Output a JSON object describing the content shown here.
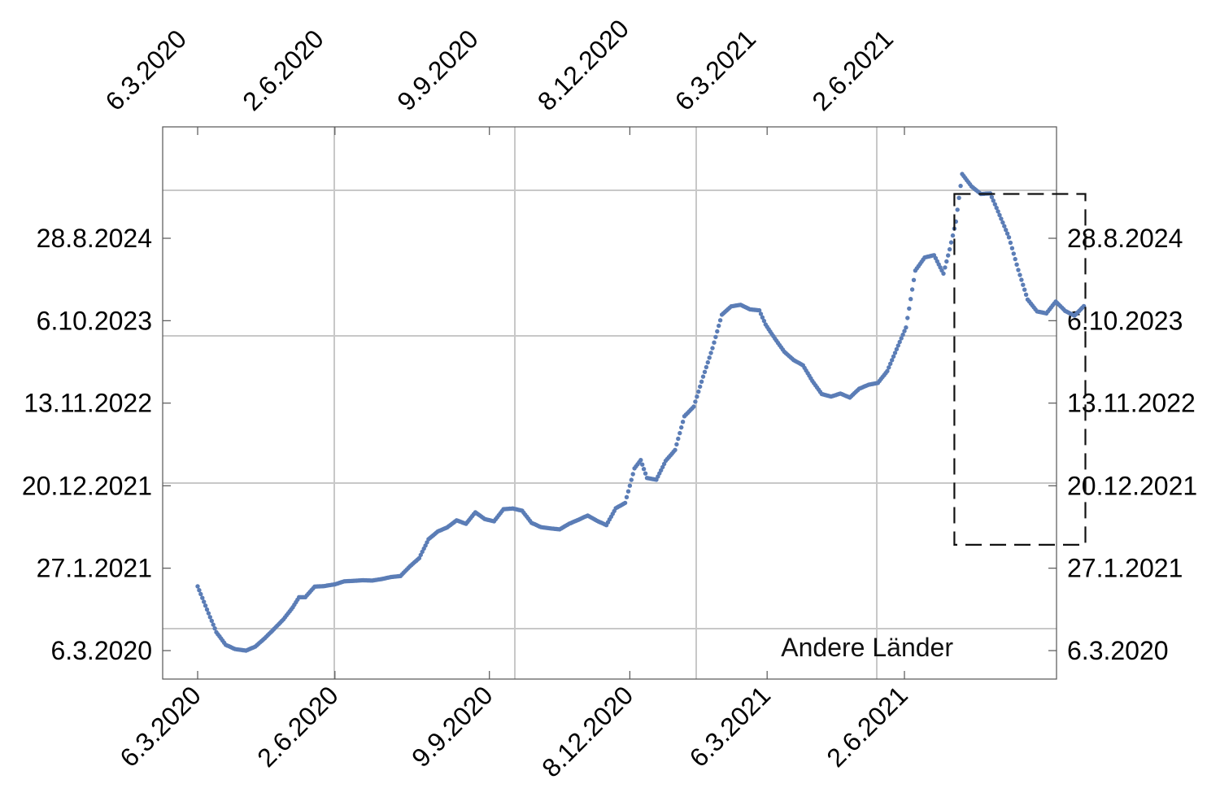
{
  "chart_data": {
    "type": "scatter",
    "title": "",
    "xlabel": "",
    "ylabel": "",
    "grid": true,
    "x_axis": {
      "type": "date",
      "ticks": [
        "6.3.2020",
        "2.6.2020",
        "9.9.2020",
        "8.12.2020",
        "6.3.2021",
        "2.6.2021"
      ],
      "range": [
        "2020-03-06",
        "2021-09-26"
      ],
      "label_rotation_deg": -45,
      "mirrored_top": true
    },
    "y_axis": {
      "type": "date",
      "ticks": [
        "6.3.2020",
        "27.1.2021",
        "20.12.2021",
        "13.11.2022",
        "6.10.2023",
        "28.8.2024"
      ],
      "range": [
        "2019-09-30",
        "2025-07-30"
      ],
      "mirrored_right": true
    },
    "annotation": "Andere Länder",
    "highlight_box": {
      "x_range": [
        "2021-07-04",
        "2021-09-26"
      ],
      "y_range": [
        "2021-04-30",
        "2025-02-20"
      ],
      "style": "dashed"
    },
    "colors": {
      "points": "#5b7db6",
      "grid": "#c8c8c8",
      "frame": "#555555",
      "box": "#111111"
    },
    "series": [
      {
        "x": [
          "2020-03-06",
          "2020-03-12",
          "2020-03-18",
          "2020-03-24",
          "2020-03-30",
          "2020-04-06",
          "2020-04-12",
          "2020-04-18",
          "2020-04-24",
          "2020-04-30",
          "2020-05-06",
          "2020-05-10",
          "2020-05-14",
          "2020-05-20",
          "2020-05-26",
          "2020-06-02",
          "2020-06-08",
          "2020-06-14",
          "2020-06-20",
          "2020-06-26",
          "2020-07-02",
          "2020-07-08",
          "2020-07-14",
          "2020-07-20",
          "2020-07-26",
          "2020-08-01",
          "2020-08-07",
          "2020-08-13",
          "2020-08-19",
          "2020-08-25",
          "2020-08-31",
          "2020-09-06",
          "2020-09-12",
          "2020-09-18",
          "2020-09-24",
          "2020-09-30",
          "2020-10-06",
          "2020-10-12",
          "2020-10-18",
          "2020-10-24",
          "2020-10-30",
          "2020-11-05",
          "2020-11-11",
          "2020-11-17",
          "2020-11-23",
          "2020-11-29",
          "2020-12-05",
          "2020-12-11",
          "2020-12-15",
          "2020-12-19",
          "2020-12-25",
          "2020-12-31",
          "2021-01-06",
          "2021-01-12",
          "2021-01-18",
          "2021-01-24",
          "2021-01-30",
          "2021-02-05",
          "2021-02-11",
          "2021-02-17",
          "2021-02-23",
          "2021-03-01",
          "2021-03-05",
          "2021-03-11",
          "2021-03-17",
          "2021-03-23",
          "2021-03-29",
          "2021-04-04",
          "2021-04-10",
          "2021-04-16",
          "2021-04-22",
          "2021-04-28",
          "2021-05-04",
          "2021-05-10",
          "2021-05-16",
          "2021-05-22",
          "2021-05-28",
          "2021-06-03",
          "2021-06-09",
          "2021-06-15",
          "2021-06-21",
          "2021-06-27",
          "2021-07-01",
          "2021-07-05",
          "2021-07-09",
          "2021-07-15",
          "2021-07-21",
          "2021-07-27",
          "2021-08-02",
          "2021-08-08",
          "2021-08-14",
          "2021-08-20",
          "2021-08-26",
          "2021-09-01",
          "2021-09-07",
          "2021-09-13",
          "2021-09-19",
          "2021-09-25"
        ],
        "y": [
          "2020-11-16",
          "2020-08-16",
          "2020-05-18",
          "2020-03-29",
          "2020-03-12",
          "2020-03-06",
          "2020-03-22",
          "2020-04-24",
          "2020-05-31",
          "2020-07-08",
          "2020-08-25",
          "2020-10-04",
          "2020-10-04",
          "2020-11-15",
          "2020-11-17",
          "2020-11-24",
          "2020-12-06",
          "2020-12-08",
          "2020-12-10",
          "2020-12-09",
          "2020-12-15",
          "2020-12-23",
          "2020-12-27",
          "2021-02-03",
          "2021-03-08",
          "2021-05-22",
          "2021-06-22",
          "2021-07-08",
          "2021-08-05",
          "2021-07-22",
          "2021-09-06",
          "2021-08-10",
          "2021-08-01",
          "2021-09-18",
          "2021-09-21",
          "2021-09-12",
          "2021-07-26",
          "2021-07-09",
          "2021-07-04",
          "2021-06-30",
          "2021-07-22",
          "2021-08-07",
          "2021-08-24",
          "2021-08-03",
          "2021-07-17",
          "2021-09-22",
          "2021-10-13",
          "2022-02-27",
          "2022-04-01",
          "2022-01-20",
          "2022-01-13",
          "2022-03-29",
          "2022-05-11",
          "2022-09-22",
          "2022-10-30",
          "2023-02-26",
          "2023-06-19",
          "2023-10-30",
          "2023-12-02",
          "2023-12-08",
          "2023-11-20",
          "2023-11-16",
          "2023-09-21",
          "2023-07-27",
          "2023-06-05",
          "2023-05-03",
          "2023-04-12",
          "2023-02-09",
          "2022-12-19",
          "2022-12-09",
          "2022-12-21",
          "2022-12-05",
          "2023-01-09",
          "2023-01-25",
          "2023-02-01",
          "2023-03-20",
          "2023-06-15",
          "2023-09-09",
          "2024-04-22",
          "2024-06-13",
          "2024-06-22",
          "2024-04-10",
          "2024-07-15",
          "2024-11-02",
          "2025-05-10",
          "2025-03-22",
          "2025-02-20",
          "2025-02-22",
          "2024-11-28",
          "2024-09-01",
          "2024-04-24",
          "2023-12-29",
          "2023-11-12",
          "2023-11-04",
          "2023-12-21",
          "2023-11-14",
          "2023-10-26",
          "2023-12-03"
        ]
      }
    ]
  }
}
